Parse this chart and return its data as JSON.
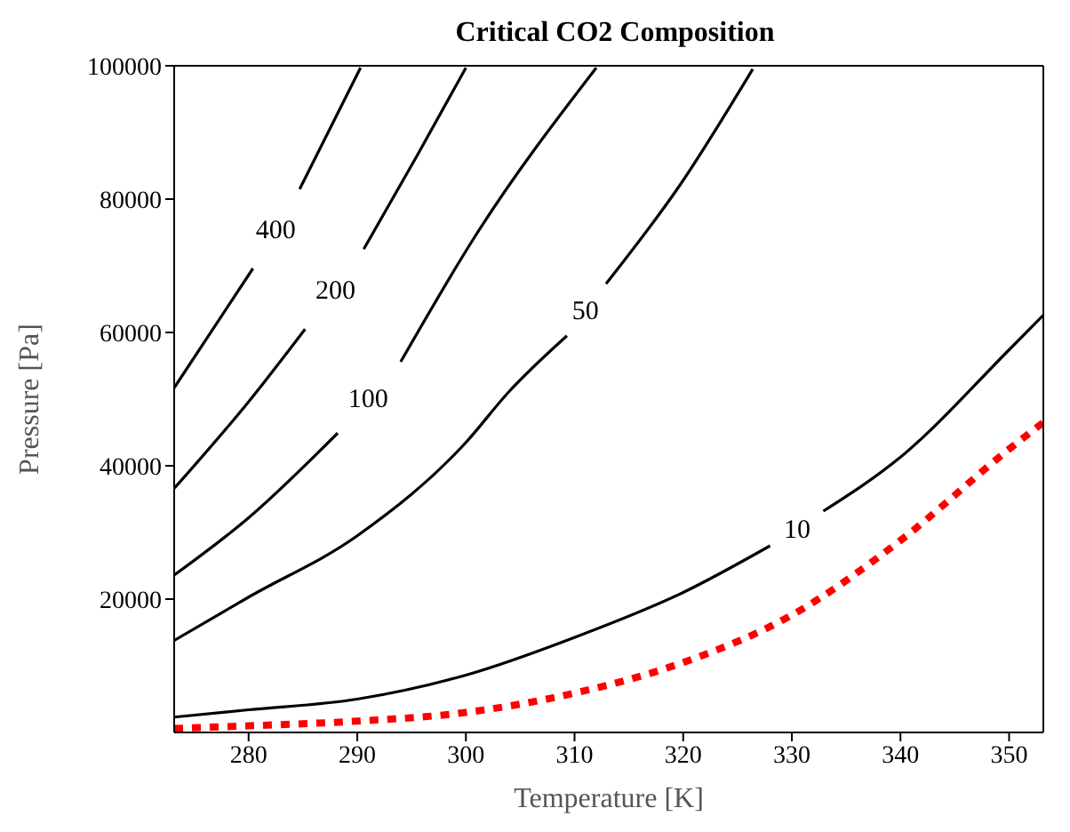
{
  "chart_data": {
    "type": "line",
    "title": "Critical CO2 Composition",
    "xlabel": "Temperature [K]",
    "ylabel": "Pressure [Pa]",
    "xlim": [
      273.15,
      353.15
    ],
    "ylim": [
      0,
      100000
    ],
    "xticks": [
      280,
      290,
      300,
      310,
      320,
      330,
      340,
      350
    ],
    "yticks": [
      20000,
      40000,
      60000,
      80000,
      100000
    ],
    "series": [
      {
        "name": "400",
        "color": "#000000",
        "line_style": "solid",
        "x": [
          273.15,
          280.4,
          282.5,
          284.7,
          290.3
        ],
        "values": [
          51700,
          69600,
          null,
          81500,
          99700
        ]
      },
      {
        "name": "200",
        "color": "#000000",
        "line_style": "solid",
        "x": [
          273.15,
          280,
          285.2,
          288,
          290.6,
          295.5,
          300
        ],
        "values": [
          36600,
          49600,
          60500,
          null,
          72500,
          86500,
          99700
        ]
      },
      {
        "name": "100",
        "color": "#000000",
        "line_style": "solid",
        "x": [
          273.15,
          280,
          288.2,
          291,
          294,
          300.8,
          312
        ],
        "values": [
          23600,
          32200,
          44900,
          null,
          55600,
          74300,
          99700
        ]
      },
      {
        "name": "50",
        "color": "#000000",
        "line_style": "solid",
        "x": [
          273.15,
          280,
          290,
          300,
          303.9,
          309.3,
          311,
          312.9,
          319.7,
          326.4
        ],
        "values": [
          13800,
          20300,
          29500,
          43500,
          51000,
          59500,
          null,
          67300,
          82100,
          99500
        ]
      },
      {
        "name": "10",
        "color": "#000000",
        "line_style": "solid",
        "x": [
          273.15,
          280,
          290,
          300,
          310.4,
          320,
          328,
          330.5,
          332.9,
          340,
          350,
          353.15
        ],
        "values": [
          2300,
          3400,
          5000,
          8600,
          14500,
          21000,
          28000,
          null,
          33200,
          41300,
          57400,
          62600
        ]
      },
      {
        "color": "#ff0000",
        "line_style": "dashed",
        "x": [
          273.15,
          280,
          290,
          300,
          310,
          320,
          330,
          340,
          350,
          353.15
        ],
        "values": [
          600,
          1000,
          1700,
          3000,
          5900,
          10500,
          17600,
          28800,
          42500,
          46500
        ]
      }
    ]
  }
}
